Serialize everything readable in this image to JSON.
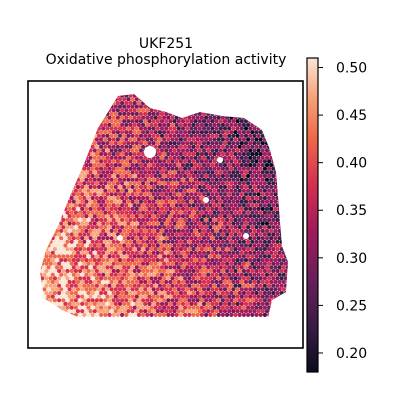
{
  "chart_data": {
    "type": "heatmap",
    "title_line1": "UKF251",
    "title_line2": "Oxidative phosphorylation activity",
    "xlabel": "",
    "ylabel": "",
    "colorbar": {
      "colormap": "rocket",
      "range": [
        0.18,
        0.51
      ],
      "ticks": [
        "0.20",
        "0.25",
        "0.30",
        "0.35",
        "0.40",
        "0.45",
        "0.50"
      ],
      "tick_values": [
        0.2,
        0.25,
        0.3,
        0.35,
        0.4,
        0.45,
        0.5
      ]
    },
    "grid": false,
    "legend": "right",
    "spot_data_summary": "hexagonal spatial spots; higher values (0.40-0.50) lower-left, lower values (0.20-0.30) upper-right"
  }
}
